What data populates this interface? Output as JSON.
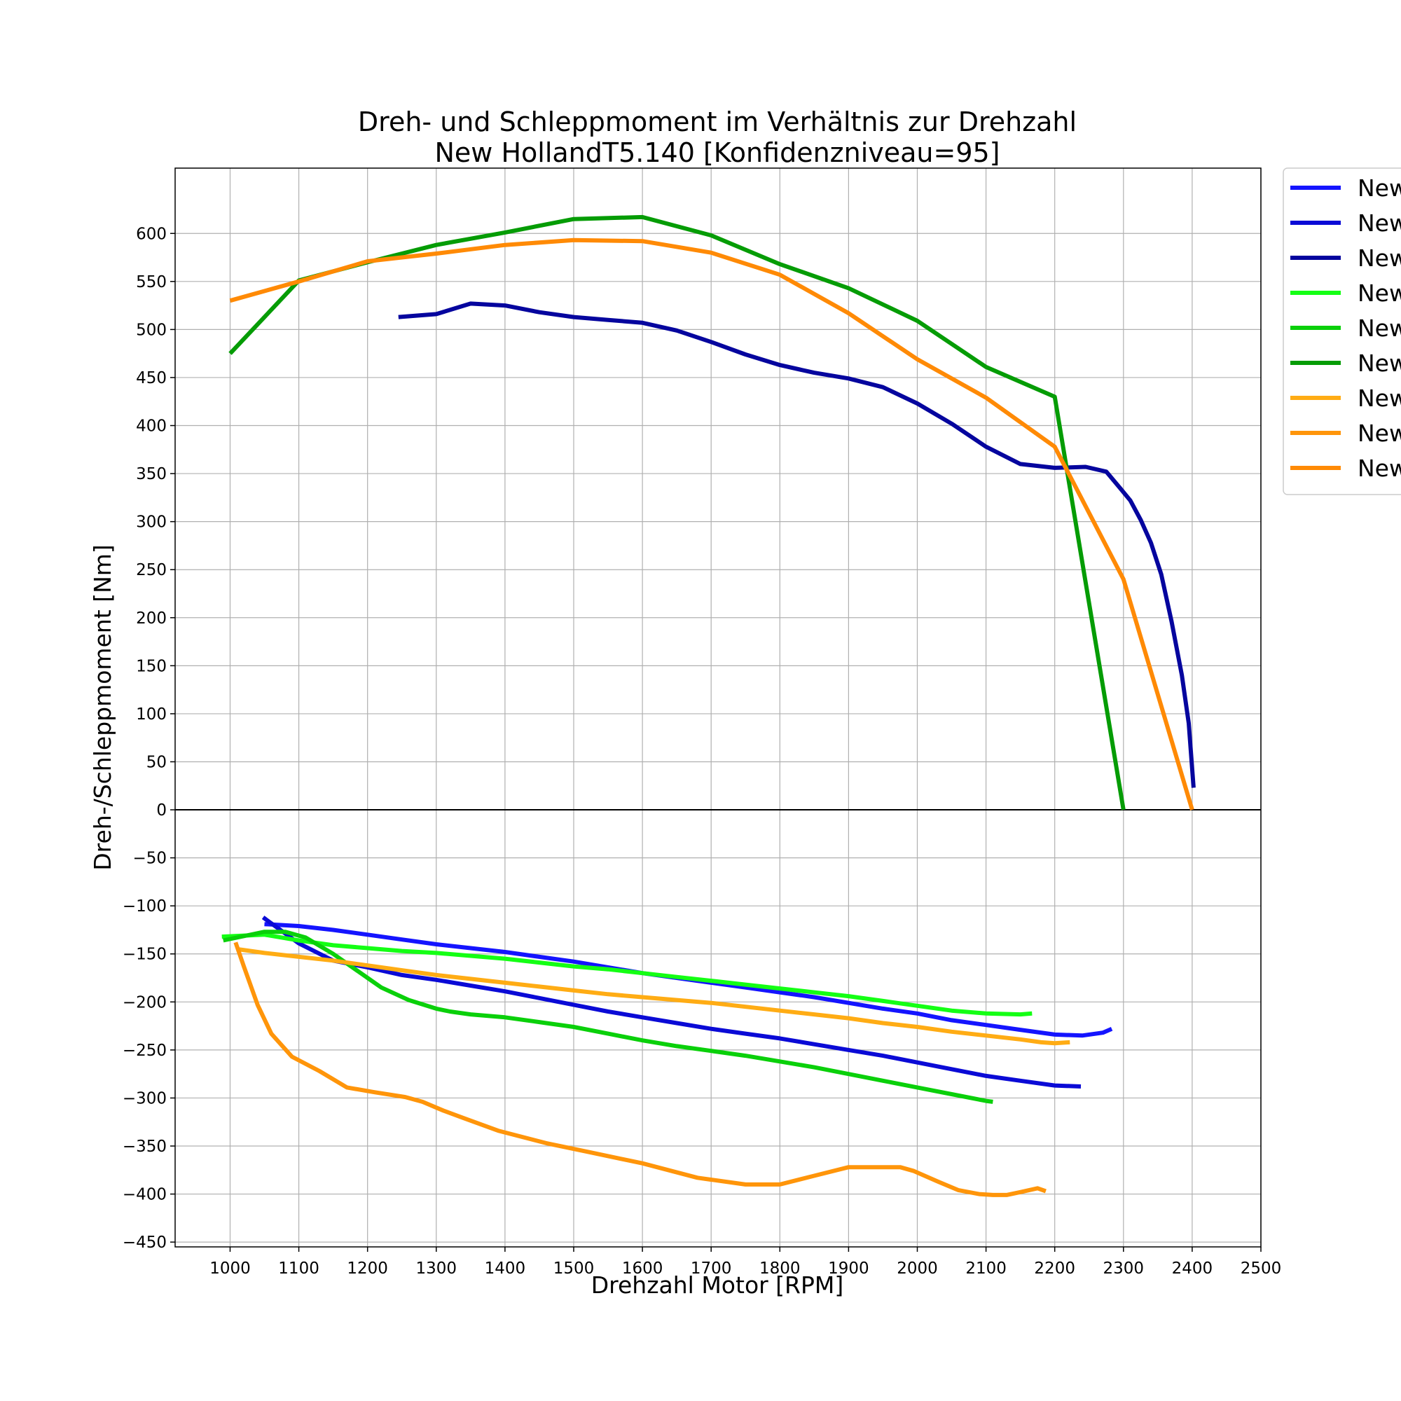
{
  "chart_data": {
    "type": "line",
    "title": [
      "Dreh- und Schleppmoment im Verhältnis zur Drehzahl",
      "New HollandT5.140 [Konfidenzniveau=95]"
    ],
    "xlabel": "Drehzahl Motor [RPM]",
    "ylabel": "Dreh-/Schleppmoment [Nm]",
    "xlim": [
      920,
      2500
    ],
    "ylim": [
      -455,
      668
    ],
    "xticks": [
      1000,
      1100,
      1200,
      1300,
      1400,
      1500,
      1600,
      1700,
      1800,
      1900,
      2000,
      2100,
      2200,
      2300,
      2400,
      2500
    ],
    "yticks": [
      -450,
      -400,
      -350,
      -300,
      -250,
      -200,
      -150,
      -100,
      -50,
      0,
      50,
      100,
      150,
      200,
      250,
      300,
      350,
      400,
      450,
      500,
      550,
      600
    ],
    "ytick_labels": [
      "−450",
      "−400",
      "−350",
      "−300",
      "−250",
      "−200",
      "−150",
      "−100",
      "−50",
      "0",
      "50",
      "100",
      "150",
      "200",
      "250",
      "300",
      "350",
      "400",
      "450",
      "500",
      "550",
      "600"
    ],
    "grid": true,
    "zero_line": true,
    "legend_position": "outside top-right (clipped)",
    "series": [
      {
        "name": "New",
        "color": "#1414ff",
        "x": [
          1050,
          1100,
          1150,
          1200,
          1250,
          1300,
          1350,
          1400,
          1450,
          1500,
          1550,
          1600,
          1650,
          1700,
          1750,
          1800,
          1850,
          1900,
          1950,
          2000,
          2050,
          2100,
          2150,
          2200,
          2240,
          2270,
          2283
        ],
        "y": [
          -119,
          -121,
          -125,
          -130,
          -135,
          -140,
          -144,
          -148,
          -153,
          -158,
          -164,
          -170,
          -175,
          -180,
          -185,
          -190,
          -195,
          -201,
          -207,
          -212,
          -219,
          -224,
          -229,
          -234,
          -235,
          -232,
          -228
        ]
      },
      {
        "name": "New",
        "color": "#0a0ad6",
        "x": [
          1048,
          1100,
          1150,
          1200,
          1250,
          1300,
          1350,
          1400,
          1450,
          1500,
          1550,
          1600,
          1650,
          1700,
          1750,
          1800,
          1850,
          1900,
          1950,
          2000,
          2050,
          2100,
          2150,
          2200,
          2238
        ],
        "y": [
          -112,
          -139,
          -157,
          -164,
          -172,
          -177,
          -183,
          -189,
          -196,
          -203,
          -210,
          -216,
          -222,
          -228,
          -233,
          -238,
          -244,
          -250,
          -256,
          -263,
          -270,
          -277,
          -282,
          -287,
          -288
        ]
      },
      {
        "name": "New",
        "color": "#05059e",
        "x": [
          1245,
          1300,
          1350,
          1400,
          1450,
          1500,
          1550,
          1600,
          1650,
          1700,
          1750,
          1800,
          1850,
          1900,
          1950,
          2000,
          2050,
          2100,
          2150,
          2200,
          2245,
          2275,
          2295,
          2310,
          2325,
          2340,
          2355,
          2370,
          2385,
          2395,
          2402
        ],
        "y": [
          513,
          516,
          527,
          525,
          518,
          513,
          510,
          507,
          499,
          487,
          474,
          463,
          455,
          449,
          440,
          423,
          402,
          378,
          360,
          356,
          357,
          352,
          335,
          322,
          302,
          278,
          245,
          196,
          140,
          90,
          23
        ]
      },
      {
        "name": "New",
        "color": "#14ff14",
        "x": [
          988,
          1050,
          1100,
          1150,
          1200,
          1250,
          1300,
          1350,
          1400,
          1450,
          1500,
          1550,
          1600,
          1650,
          1700,
          1750,
          1800,
          1850,
          1900,
          1950,
          2000,
          2050,
          2100,
          2150,
          2167
        ],
        "y": [
          -132,
          -130,
          -136,
          -141,
          -144,
          -147,
          -149,
          -152,
          -155,
          -159,
          -163,
          -166,
          -170,
          -174,
          -178,
          -182,
          -186,
          -190,
          -194,
          -199,
          -204,
          -209,
          -212,
          -213,
          -212
        ]
      },
      {
        "name": "New",
        "color": "#0ad00a",
        "x": [
          990,
          1050,
          1080,
          1110,
          1150,
          1200,
          1220,
          1260,
          1300,
          1320,
          1350,
          1400,
          1450,
          1500,
          1550,
          1600,
          1650,
          1700,
          1750,
          1800,
          1850,
          1900,
          1950,
          2000,
          2050,
          2100,
          2110
        ],
        "y": [
          -136,
          -127,
          -127,
          -133,
          -150,
          -175,
          -185,
          -198,
          -207,
          -210,
          -213,
          -216,
          -221,
          -226,
          -233,
          -240,
          -246,
          -251,
          -256,
          -262,
          -268,
          -275,
          -282,
          -289,
          -296,
          -303,
          -304
        ]
      },
      {
        "name": "New",
        "color": "#059c05",
        "x": [
          1000,
          1100,
          1200,
          1300,
          1400,
          1500,
          1600,
          1700,
          1800,
          1900,
          2000,
          2100,
          2200,
          2300
        ],
        "y": [
          475,
          551,
          570,
          588,
          601,
          615,
          617,
          598,
          568,
          543,
          509,
          461,
          430,
          0
        ]
      },
      {
        "name": "New",
        "color": "#ffac14",
        "x": [
          1010,
          1050,
          1100,
          1150,
          1200,
          1250,
          1300,
          1350,
          1400,
          1450,
          1500,
          1550,
          1600,
          1650,
          1700,
          1750,
          1800,
          1850,
          1900,
          1950,
          2000,
          2050,
          2100,
          2150,
          2180,
          2200,
          2222
        ],
        "y": [
          -145,
          -149,
          -153,
          -157,
          -162,
          -167,
          -172,
          -176,
          -180,
          -184,
          -188,
          -192,
          -195,
          -198,
          -201,
          -205,
          -209,
          -213,
          -217,
          -222,
          -226,
          -231,
          -235,
          -239,
          -242,
          -243,
          -242
        ]
      },
      {
        "name": "New",
        "color": "#ff950a",
        "x": [
          1008,
          1020,
          1040,
          1060,
          1090,
          1130,
          1170,
          1210,
          1255,
          1280,
          1310,
          1340,
          1390,
          1460,
          1520,
          1600,
          1680,
          1750,
          1780,
          1800,
          1850,
          1900,
          1940,
          1975,
          1995,
          2030,
          2060,
          2090,
          2110,
          2130,
          2150,
          2175,
          2187
        ],
        "y": [
          -138,
          -163,
          -203,
          -233,
          -257,
          -272,
          -289,
          -294,
          -299,
          -304,
          -313,
          -321,
          -334,
          -347,
          -356,
          -368,
          -383,
          -390,
          -390,
          -390,
          -381,
          -372,
          -372,
          -372,
          -376,
          -387,
          -396,
          -400,
          -401,
          -401,
          -398,
          -394,
          -397
        ]
      },
      {
        "name": "New",
        "color": "#ff8a05",
        "x": [
          1000,
          1100,
          1200,
          1300,
          1400,
          1500,
          1600,
          1700,
          1800,
          1900,
          2000,
          2100,
          2200,
          2300,
          2400
        ],
        "y": [
          530,
          550,
          571,
          579,
          588,
          593,
          592,
          580,
          557,
          517,
          469,
          429,
          378,
          240,
          0
        ]
      }
    ]
  }
}
